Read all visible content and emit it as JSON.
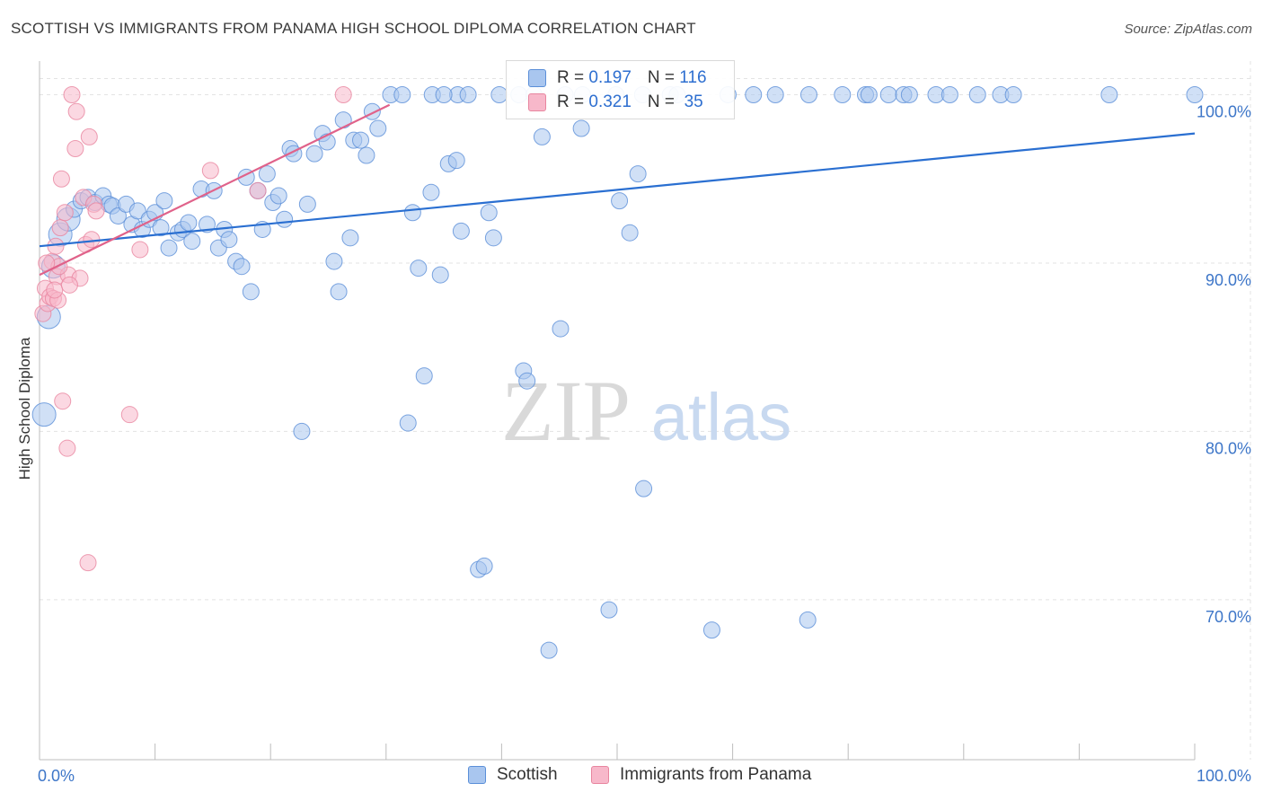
{
  "header": {
    "title": "SCOTTISH VS IMMIGRANTS FROM PANAMA HIGH SCHOOL DIPLOMA CORRELATION CHART",
    "source": "Source: ZipAtlas.com"
  },
  "watermark": {
    "zip": "ZIP",
    "atlas": "atlas"
  },
  "colors": {
    "scottish_fill": "#a9c6ef",
    "scottish_stroke": "#5b8fd8",
    "scottish_line": "#2a6fd1",
    "panama_fill": "#f7b8ca",
    "panama_stroke": "#e8859f",
    "panama_line": "#e0628a",
    "tick_label": "#3d76c8",
    "grid": "#e3e3e3"
  },
  "legend": {
    "rows": [
      {
        "r_label": "R = ",
        "r_value": "0.197",
        "n_label": "N = ",
        "n_value": "116"
      },
      {
        "r_label": "R = ",
        "r_value": "0.321",
        "n_label": "N = ",
        "n_value": " 35"
      }
    ]
  },
  "chart_data": {
    "type": "scatter",
    "title": "SCOTTISH VS IMMIGRANTS FROM PANAMA HIGH SCHOOL DIPLOMA CORRELATION CHART",
    "xlabel": "",
    "ylabel": "High School Diploma",
    "xlim": [
      0,
      100
    ],
    "ylim": [
      60.5,
      102
    ],
    "x_tick_labels": [
      "0.0%",
      "100.0%"
    ],
    "y_ticks": [
      70,
      80,
      90,
      100
    ],
    "y_tick_labels": [
      "70.0%",
      "80.0%",
      "90.0%",
      "100.0%"
    ],
    "grid": true,
    "legend_position": "bottom",
    "series": [
      {
        "name": "Scottish",
        "r": 0.197,
        "n": 116,
        "trend": {
          "x": [
            0,
            100
          ],
          "y": [
            91.0,
            97.7
          ]
        },
        "points": [
          [
            0.4,
            81.0
          ],
          [
            0.8,
            86.8
          ],
          [
            1.2,
            89.8
          ],
          [
            1.8,
            91.7
          ],
          [
            2.5,
            92.6
          ],
          [
            3.0,
            93.2
          ],
          [
            3.6,
            93.7
          ],
          [
            4.2,
            93.9
          ],
          [
            4.8,
            93.6
          ],
          [
            5.5,
            94.0
          ],
          [
            6.0,
            93.5
          ],
          [
            6.3,
            93.4
          ],
          [
            6.8,
            92.8
          ],
          [
            7.5,
            93.5
          ],
          [
            8.0,
            92.3
          ],
          [
            8.5,
            93.1
          ],
          [
            8.9,
            92.0
          ],
          [
            9.5,
            92.6
          ],
          [
            10.0,
            93.0
          ],
          [
            10.5,
            92.1
          ],
          [
            10.8,
            93.7
          ],
          [
            11.2,
            90.9
          ],
          [
            12.0,
            91.8
          ],
          [
            12.4,
            92.0
          ],
          [
            12.9,
            92.4
          ],
          [
            13.2,
            91.3
          ],
          [
            14.0,
            94.4
          ],
          [
            14.5,
            92.3
          ],
          [
            15.1,
            94.3
          ],
          [
            15.5,
            90.9
          ],
          [
            16.0,
            92.0
          ],
          [
            16.4,
            91.4
          ],
          [
            17.0,
            90.1
          ],
          [
            17.5,
            89.8
          ],
          [
            17.9,
            95.1
          ],
          [
            18.3,
            88.3
          ],
          [
            18.9,
            94.3
          ],
          [
            19.3,
            92.0
          ],
          [
            19.7,
            95.3
          ],
          [
            20.2,
            93.6
          ],
          [
            20.7,
            94.0
          ],
          [
            21.2,
            92.6
          ],
          [
            21.7,
            96.8
          ],
          [
            22.0,
            96.5
          ],
          [
            22.7,
            80.0
          ],
          [
            23.2,
            93.5
          ],
          [
            23.8,
            96.5
          ],
          [
            24.5,
            97.7
          ],
          [
            24.9,
            97.2
          ],
          [
            25.5,
            90.1
          ],
          [
            25.9,
            88.3
          ],
          [
            26.3,
            98.5
          ],
          [
            26.9,
            91.5
          ],
          [
            27.2,
            97.3
          ],
          [
            27.8,
            97.3
          ],
          [
            28.3,
            96.4
          ],
          [
            28.8,
            99.0
          ],
          [
            29.3,
            98.0
          ],
          [
            30.4,
            100.0
          ],
          [
            31.4,
            100.0
          ],
          [
            31.9,
            80.5
          ],
          [
            32.3,
            93.0
          ],
          [
            32.8,
            89.7
          ],
          [
            33.3,
            83.3
          ],
          [
            34.0,
            100.0
          ],
          [
            33.9,
            94.2
          ],
          [
            34.7,
            89.3
          ],
          [
            35.4,
            95.9
          ],
          [
            36.2,
            100.0
          ],
          [
            35.0,
            100.0
          ],
          [
            36.1,
            96.1
          ],
          [
            36.5,
            91.9
          ],
          [
            37.1,
            100.0
          ],
          [
            38.0,
            71.8
          ],
          [
            38.5,
            72.0
          ],
          [
            38.9,
            93.0
          ],
          [
            39.3,
            91.5
          ],
          [
            39.8,
            100.0
          ],
          [
            41.5,
            100.0
          ],
          [
            41.9,
            83.6
          ],
          [
            42.2,
            83.0
          ],
          [
            43.5,
            97.5
          ],
          [
            42.8,
            100.0
          ],
          [
            44.1,
            67.0
          ],
          [
            45.1,
            86.1
          ],
          [
            45.5,
            100.0
          ],
          [
            46.9,
            98.0
          ],
          [
            47.0,
            100.0
          ],
          [
            49.3,
            69.4
          ],
          [
            50.2,
            93.7
          ],
          [
            49.9,
            100.0
          ],
          [
            51.1,
            91.8
          ],
          [
            51.8,
            95.3
          ],
          [
            52.3,
            76.6
          ],
          [
            52.2,
            100.0
          ],
          [
            54.6,
            100.0
          ],
          [
            55.2,
            100.0
          ],
          [
            58.2,
            68.2
          ],
          [
            59.6,
            100.0
          ],
          [
            61.8,
            100.0
          ],
          [
            63.7,
            100.0
          ],
          [
            66.5,
            68.8
          ],
          [
            66.6,
            100.0
          ],
          [
            69.5,
            100.0
          ],
          [
            71.5,
            100.0
          ],
          [
            71.8,
            100.0
          ],
          [
            73.5,
            100.0
          ],
          [
            74.8,
            100.0
          ],
          [
            75.3,
            100.0
          ],
          [
            77.6,
            100.0
          ],
          [
            78.8,
            100.0
          ],
          [
            81.2,
            100.0
          ],
          [
            83.2,
            100.0
          ],
          [
            84.3,
            100.0
          ],
          [
            92.6,
            100.0
          ],
          [
            100.0,
            100.0
          ]
        ]
      },
      {
        "name": "Immigrants from Panama",
        "r": 0.321,
        "n": 35,
        "trend": {
          "x": [
            0,
            30.3
          ],
          "y": [
            89.3,
            99.4
          ]
        },
        "points": [
          [
            0.3,
            87.0
          ],
          [
            0.5,
            88.5
          ],
          [
            0.7,
            87.6
          ],
          [
            0.9,
            88.0
          ],
          [
            1.1,
            90.1
          ],
          [
            1.2,
            87.9
          ],
          [
            1.4,
            91.0
          ],
          [
            1.5,
            89.2
          ],
          [
            1.6,
            87.8
          ],
          [
            1.8,
            92.1
          ],
          [
            1.9,
            95.0
          ],
          [
            2.0,
            81.8
          ],
          [
            2.2,
            93.0
          ],
          [
            2.4,
            79.0
          ],
          [
            2.5,
            89.3
          ],
          [
            2.8,
            100.0
          ],
          [
            3.1,
            96.8
          ],
          [
            3.2,
            99.0
          ],
          [
            3.5,
            89.1
          ],
          [
            3.8,
            93.9
          ],
          [
            4.0,
            91.1
          ],
          [
            4.2,
            72.2
          ],
          [
            4.3,
            97.5
          ],
          [
            4.5,
            91.4
          ],
          [
            4.7,
            93.5
          ],
          [
            4.9,
            93.1
          ],
          [
            7.8,
            81.0
          ],
          [
            8.7,
            90.8
          ],
          [
            14.8,
            95.5
          ],
          [
            18.9,
            94.3
          ],
          [
            26.3,
            100.0
          ],
          [
            1.3,
            88.4
          ],
          [
            1.7,
            89.8
          ],
          [
            2.6,
            88.7
          ],
          [
            0.6,
            90.0
          ]
        ]
      }
    ]
  }
}
